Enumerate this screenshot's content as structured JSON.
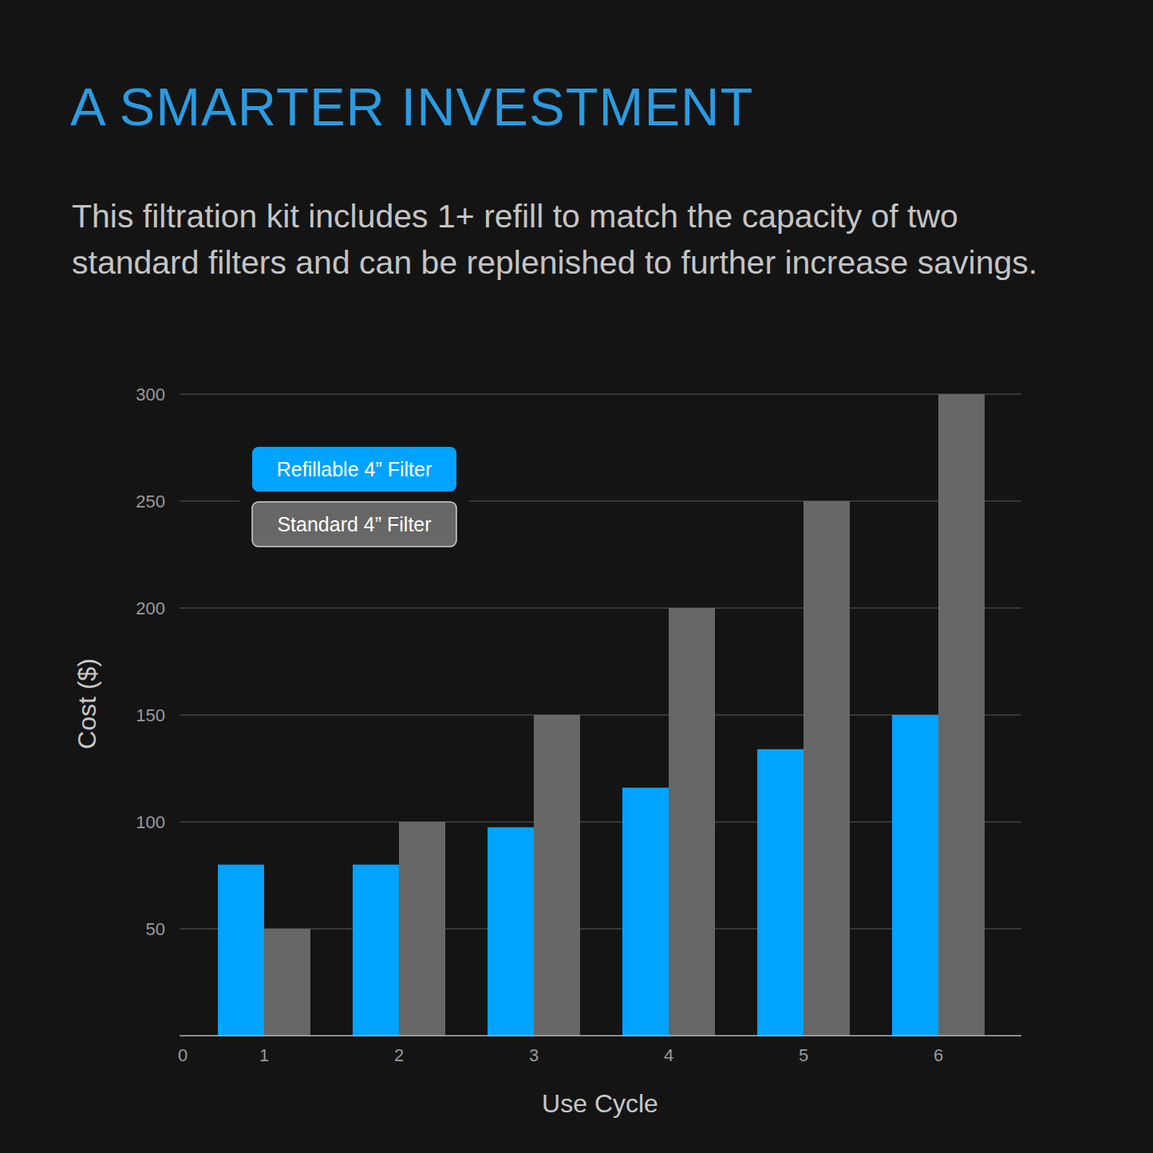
{
  "chart_data": {
    "type": "bar",
    "title": "A SMARTER INVESTMENT",
    "subtitle": "This filtration kit includes 1+ refill to match the capacity of two standard filters and can be replenished to further increase savings.",
    "x_label": "Use Cycle",
    "y_label": "Cost ($)",
    "categories": [
      "1",
      "2",
      "3",
      "4",
      "5",
      "6"
    ],
    "series": [
      {
        "name": "Refillable 4” Filter",
        "color": "#00a3ff",
        "values": [
          80,
          80,
          97.5,
          116,
          134,
          150
        ]
      },
      {
        "name": "Standard 4” Filter",
        "color": "#676767",
        "values": [
          50,
          100,
          150,
          200,
          250,
          300
        ]
      }
    ],
    "ylim": [
      0,
      300
    ],
    "yticks": [
      0,
      50,
      100,
      150,
      200,
      250,
      300
    ],
    "grid": true,
    "legend": "upper left"
  }
}
